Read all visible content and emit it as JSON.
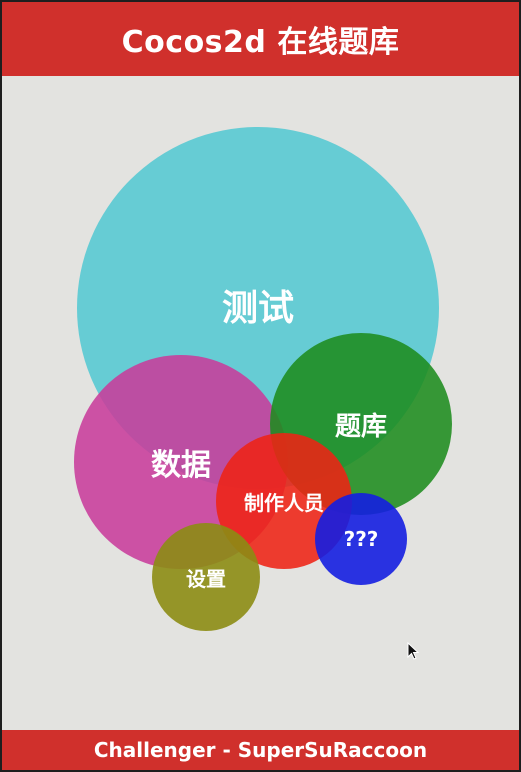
{
  "header": {
    "title": "Cocos2d 在线题库"
  },
  "menu": {
    "test": "测试",
    "data": "数据",
    "bank": "题库",
    "staff": "制作人员",
    "unknown": "???",
    "settings": "设置"
  },
  "footer": {
    "credit": "Challenger - SuperSuRaccoon"
  },
  "colors": {
    "bar": "#d0302c",
    "background": "#e3e3e0",
    "test": "#54c8d2",
    "data": "#c83c9b",
    "bank": "#1e8c1e",
    "staff": "#ee2314",
    "unknown": "#141ee1",
    "settings": "#8c8c14"
  },
  "icons": {
    "cursor": "mouse-pointer-icon"
  }
}
